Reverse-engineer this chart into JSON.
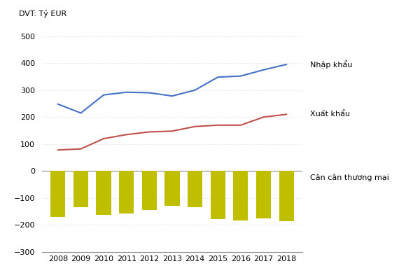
{
  "years": [
    2008,
    2009,
    2010,
    2011,
    2012,
    2013,
    2014,
    2015,
    2016,
    2017,
    2018
  ],
  "imports": [
    248,
    215,
    282,
    292,
    290,
    278,
    300,
    348,
    352,
    375,
    395
  ],
  "exports": [
    78,
    82,
    120,
    135,
    145,
    148,
    165,
    170,
    170,
    200,
    210
  ],
  "trade_balance": [
    -170,
    -133,
    -162,
    -157,
    -145,
    -130,
    -135,
    -178,
    -182,
    -175,
    -185
  ],
  "import_color": "#4472C4",
  "export_color": "#C0504D",
  "bar_color": "#BFBF00",
  "dvt_label": "DVT: Tỷ EUR",
  "label_imports": "Nhập khẩu",
  "label_exports": "Xuất khẩu",
  "label_balance": "Cân cân thương mại",
  "bg_color": "#ffffff",
  "grid_color": "#d0d0d0"
}
